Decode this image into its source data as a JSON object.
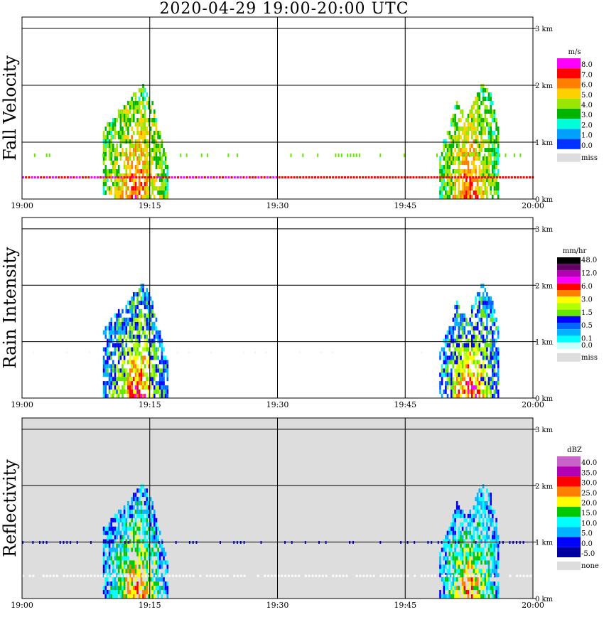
{
  "title": "2020-04-29   19:00-20:00 UTC",
  "chart_data": [
    {
      "type": "heatmap",
      "ylabel": "Fall Velocity",
      "unit": "m/s",
      "x_ticks": [
        "19:00",
        "19:15",
        "19:30",
        "19:45",
        "20:00"
      ],
      "y_ticks": [
        "0 km",
        "1 km",
        "2 km",
        "3 km"
      ],
      "ylim_km": [
        0,
        3.2
      ],
      "background": "#ffffff",
      "legend": [
        {
          "label": "8.0",
          "color": "#ff00ff"
        },
        {
          "label": "7.0",
          "color": "#ff0000"
        },
        {
          "label": "6.0",
          "color": "#ff7f00"
        },
        {
          "label": "5.0",
          "color": "#ffd000"
        },
        {
          "label": "4.0",
          "color": "#9be600"
        },
        {
          "label": "3.0",
          "color": "#00b400"
        },
        {
          "label": "2.0",
          "color": "#00ffd8"
        },
        {
          "label": "1.0",
          "color": "#00a0ff"
        },
        {
          "label": "0.0",
          "color": "#0032ff"
        }
      ],
      "miss_label": "miss",
      "miss_color": "#dddddd"
    },
    {
      "type": "heatmap",
      "ylabel": "Rain Intensity",
      "unit": "mm/hr",
      "x_ticks": [
        "19:00",
        "19:15",
        "19:30",
        "19:45",
        "20:00"
      ],
      "y_ticks": [
        "0 km",
        "1 km",
        "2 km",
        "3 km"
      ],
      "ylim_km": [
        0,
        3.2
      ],
      "background": "#ffffff",
      "legend": [
        {
          "label": "48.0",
          "color": "#000000"
        },
        {
          "label": "",
          "color": "#640064"
        },
        {
          "label": "12.0",
          "color": "#b400b4"
        },
        {
          "label": "",
          "color": "#ff00ff"
        },
        {
          "label": "6.0",
          "color": "#ff0000"
        },
        {
          "label": "",
          "color": "#ff7f00"
        },
        {
          "label": "3.0",
          "color": "#ffff00"
        },
        {
          "label": "",
          "color": "#b4ff00"
        },
        {
          "label": "1.5",
          "color": "#64e600"
        },
        {
          "label": "",
          "color": "#0000ff"
        },
        {
          "label": "0.5",
          "color": "#0064ff"
        },
        {
          "label": "",
          "color": "#00b4ff"
        },
        {
          "label": "0.1",
          "color": "#00ffff"
        },
        {
          "label": "0.0",
          "color": "#c8ffff"
        }
      ],
      "miss_label": "miss",
      "miss_color": "#dddddd"
    },
    {
      "type": "heatmap",
      "ylabel": "Reflectivity",
      "unit": "dBZ",
      "x_ticks": [
        "19:00",
        "19:15",
        "19:30",
        "19:45",
        "20:00"
      ],
      "y_ticks": [
        "0 km",
        "1 km",
        "2 km",
        "3 km"
      ],
      "ylim_km": [
        0,
        3.2
      ],
      "background": "#dddddd",
      "legend": [
        {
          "label": "40.0",
          "color": "#c864c8"
        },
        {
          "label": "35.0",
          "color": "#b400b4"
        },
        {
          "label": "30.0",
          "color": "#ff0000"
        },
        {
          "label": "25.0",
          "color": "#ff7f00"
        },
        {
          "label": "20.0",
          "color": "#ffff00"
        },
        {
          "label": "15.0",
          "color": "#00c800"
        },
        {
          "label": "10.0",
          "color": "#00ffff"
        },
        {
          "label": "5.0",
          "color": "#00b4ff"
        },
        {
          "label": "0.0",
          "color": "#0000ff"
        },
        {
          "label": "-5.0",
          "color": "#0000a0"
        }
      ],
      "miss_label": "none",
      "miss_color": "#dddddd"
    }
  ]
}
